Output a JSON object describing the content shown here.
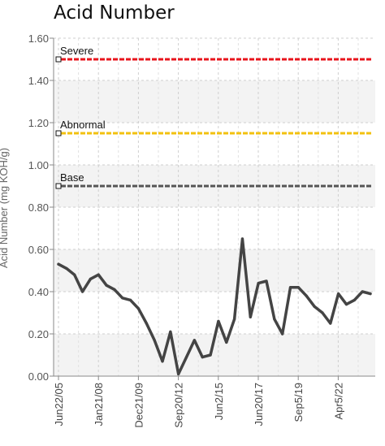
{
  "chart_data": {
    "type": "line",
    "title": "Acid Number",
    "ylabel": "Acid Number (mg KOH/g)",
    "xlabel": "",
    "ylim": [
      0,
      1.6
    ],
    "y_ticks": [
      "0.00",
      "0.20",
      "0.40",
      "0.60",
      "0.80",
      "1.00",
      "1.20",
      "1.40",
      "1.60"
    ],
    "x_tick_labels": [
      "Jun22/05",
      "Jan21/08",
      "Dec21/09",
      "Sep20/12",
      "Jun2/15",
      "Jun20/17",
      "Sep5/19",
      "Apr5/22"
    ],
    "grid": true,
    "reference_lines": [
      {
        "name": "Severe",
        "value": 1.5,
        "color": "#e8141c"
      },
      {
        "name": "Abnormal",
        "value": 1.15,
        "color": "#f2c10f"
      },
      {
        "name": "Base",
        "value": 0.9,
        "color": "#555555"
      }
    ],
    "series": [
      {
        "color": "#444444",
        "values": [
          0.53,
          0.51,
          0.48,
          0.4,
          0.46,
          0.48,
          0.43,
          0.41,
          0.37,
          0.36,
          0.32,
          0.25,
          0.17,
          0.07,
          0.21,
          0.01,
          0.09,
          0.17,
          0.09,
          0.1,
          0.26,
          0.16,
          0.27,
          0.65,
          0.28,
          0.44,
          0.45,
          0.27,
          0.2,
          0.42,
          0.42,
          0.38,
          0.33,
          0.3,
          0.25,
          0.39,
          0.34,
          0.36,
          0.4,
          0.39
        ]
      }
    ]
  }
}
